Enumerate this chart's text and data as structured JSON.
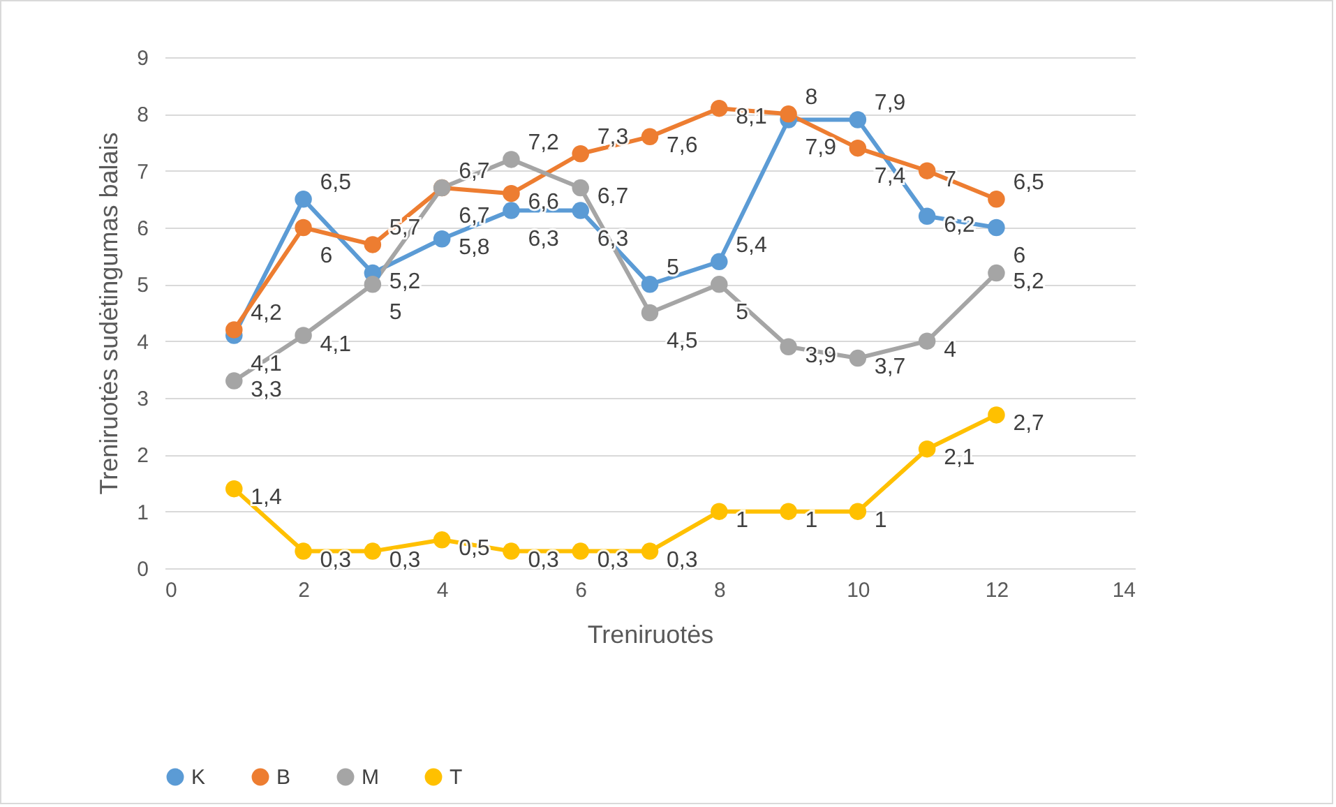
{
  "chart_data": {
    "type": "line",
    "xlabel": "Treniruotės",
    "ylabel": "Treniruotės sudėtingumas balais",
    "x": [
      1,
      2,
      3,
      4,
      5,
      6,
      7,
      8,
      9,
      10,
      11,
      12
    ],
    "series": [
      {
        "name": "K",
        "color": "#5b9bd5",
        "values": [
          4.1,
          6.5,
          5.2,
          5.8,
          6.3,
          6.3,
          5,
          5.4,
          7.9,
          7.9,
          6.2,
          6
        ],
        "value_labels": [
          "4,1",
          "6,5",
          "5,2",
          "5,8",
          "6,3",
          "6,3",
          "5",
          "5,4",
          "7,9",
          "7,9",
          "6,2",
          "6"
        ]
      },
      {
        "name": "B",
        "color": "#ed7d31",
        "values": [
          4.2,
          6,
          5.7,
          6.7,
          6.6,
          7.3,
          7.6,
          8.1,
          8,
          7.4,
          7,
          6.5
        ],
        "value_labels": [
          "4,2",
          "6",
          "5,7",
          "6,7",
          "6,6",
          "7,3",
          "7,6",
          "8,1",
          "8",
          "7,4",
          "7",
          "6,5"
        ]
      },
      {
        "name": "M",
        "color": "#a5a5a5",
        "values": [
          3.3,
          4.1,
          5,
          6.7,
          7.2,
          6.7,
          4.5,
          5,
          3.9,
          3.7,
          4,
          5.2
        ],
        "value_labels": [
          "3,3",
          "4,1",
          "5",
          "6,7",
          "7,2",
          "6,7",
          "4,5",
          "5",
          "3,9",
          "3,7",
          "4",
          "5,2"
        ]
      },
      {
        "name": "T",
        "color": "#ffc000",
        "values": [
          1.4,
          0.3,
          0.3,
          0.5,
          0.3,
          0.3,
          0.3,
          1,
          1,
          1,
          2.1,
          2.7
        ],
        "value_labels": [
          "1,4",
          "0,3",
          "0,3",
          "0,5",
          "0,3",
          "0,3",
          "0,3",
          "1",
          "1",
          "1",
          "2,1",
          "2,7"
        ]
      }
    ],
    "xlim": [
      0,
      14
    ],
    "xticks": [
      0,
      2,
      4,
      6,
      8,
      10,
      12,
      14
    ],
    "ylim": [
      0,
      9
    ],
    "yticks": [
      0,
      1,
      2,
      3,
      4,
      5,
      6,
      7,
      8,
      9
    ],
    "grid": "y",
    "legend": "bottom",
    "marker": "circle",
    "line_style": "solid"
  }
}
